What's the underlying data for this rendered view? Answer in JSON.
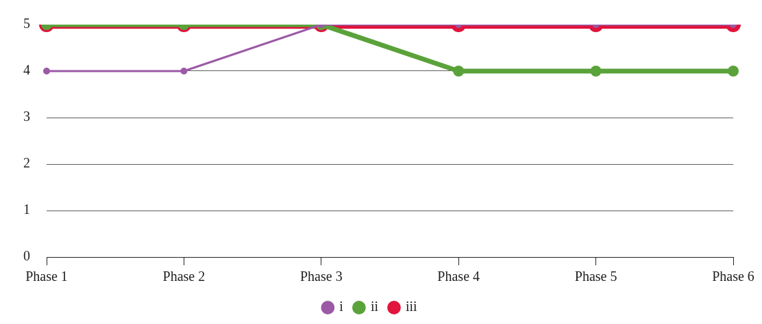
{
  "chart_data": {
    "type": "line",
    "categories": [
      "Phase 1",
      "Phase 2",
      "Phase 3",
      "Phase 4",
      "Phase 5",
      "Phase 6"
    ],
    "series": [
      {
        "name": "i",
        "color": "#9b59a6",
        "values": [
          4,
          4,
          5,
          5,
          5,
          5
        ]
      },
      {
        "name": "ii",
        "color": "#5aa23a",
        "values": [
          5,
          5,
          5,
          4,
          4,
          4
        ]
      },
      {
        "name": "iii",
        "color": "#e0143c",
        "values": [
          5,
          5,
          5,
          5,
          5,
          5
        ]
      }
    ],
    "ylim": [
      0,
      5
    ],
    "yticks": [
      0,
      1,
      2,
      3,
      4,
      5
    ],
    "grid": "y",
    "legend": "bottom",
    "marker": "circle",
    "line_style": "solid"
  }
}
